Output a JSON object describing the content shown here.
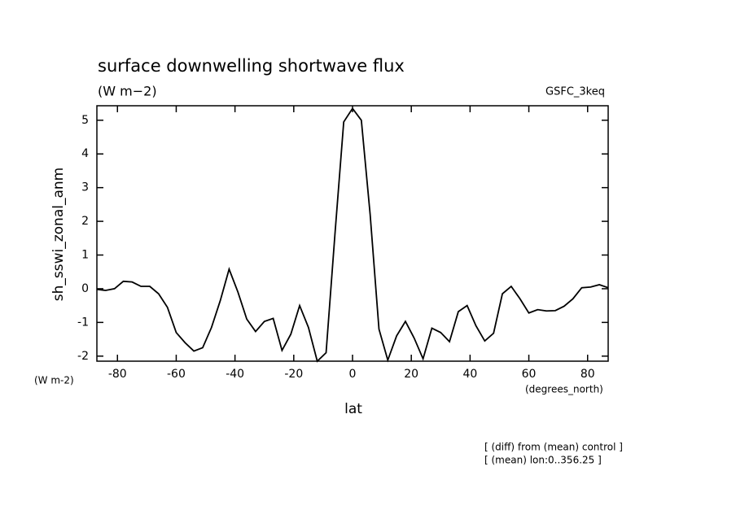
{
  "chart_data": {
    "type": "line",
    "title": "surface downwelling shortwave flux",
    "subtitle": "(W m−2)",
    "dataset": "GSFC_3keq",
    "y_label": "sh_sswi_zonal_anm",
    "y_units": "(W m-2)",
    "x_label": "lat",
    "x_units": "(degrees_north)",
    "notes": [
      "[ (diff) from (mean) control ]",
      "[ (mean) lon:0..356.25 ]"
    ],
    "x": [
      -87,
      -84,
      -81,
      -78,
      -75,
      -72,
      -69,
      -66,
      -63,
      -60,
      -57,
      -54,
      -51,
      -48,
      -45,
      -42,
      -39,
      -36,
      -33,
      -30,
      -27,
      -24,
      -21,
      -18,
      -15,
      -12,
      -9,
      -6,
      -3,
      0,
      3,
      6,
      9,
      12,
      15,
      18,
      21,
      24,
      27,
      30,
      33,
      36,
      39,
      42,
      45,
      48,
      51,
      54,
      57,
      60,
      63,
      66,
      69,
      72,
      75,
      78,
      81,
      84,
      87
    ],
    "series": [
      {
        "color": "#000000",
        "values": [
          -0.02,
          -0.05,
          0.0,
          0.22,
          0.2,
          0.07,
          0.07,
          -0.15,
          -0.55,
          -1.3,
          -1.6,
          -1.85,
          -1.75,
          -1.15,
          -0.35,
          0.58,
          -0.1,
          -0.9,
          -1.27,
          -0.97,
          -0.88,
          -1.83,
          -1.35,
          -0.5,
          -1.15,
          -2.15,
          -1.9,
          1.6,
          4.95,
          5.35,
          5.0,
          2.2,
          -1.2,
          -2.12,
          -1.4,
          -0.97,
          -1.47,
          -2.08,
          -1.17,
          -1.3,
          -1.57,
          -0.68,
          -0.5,
          -1.1,
          -1.55,
          -1.32,
          -0.15,
          0.07,
          -0.3,
          -0.72,
          -0.62,
          -0.66,
          -0.65,
          -0.52,
          -0.3,
          0.03,
          0.05,
          0.12,
          0.03
        ]
      }
    ],
    "xlim": [
      -87,
      87
    ],
    "ylim": [
      -2.15,
      5.43
    ],
    "xticks": [
      -80,
      -60,
      -40,
      -20,
      0,
      20,
      40,
      60,
      80
    ],
    "yticks": [
      -2,
      -1,
      0,
      1,
      2,
      3,
      4,
      5
    ]
  }
}
